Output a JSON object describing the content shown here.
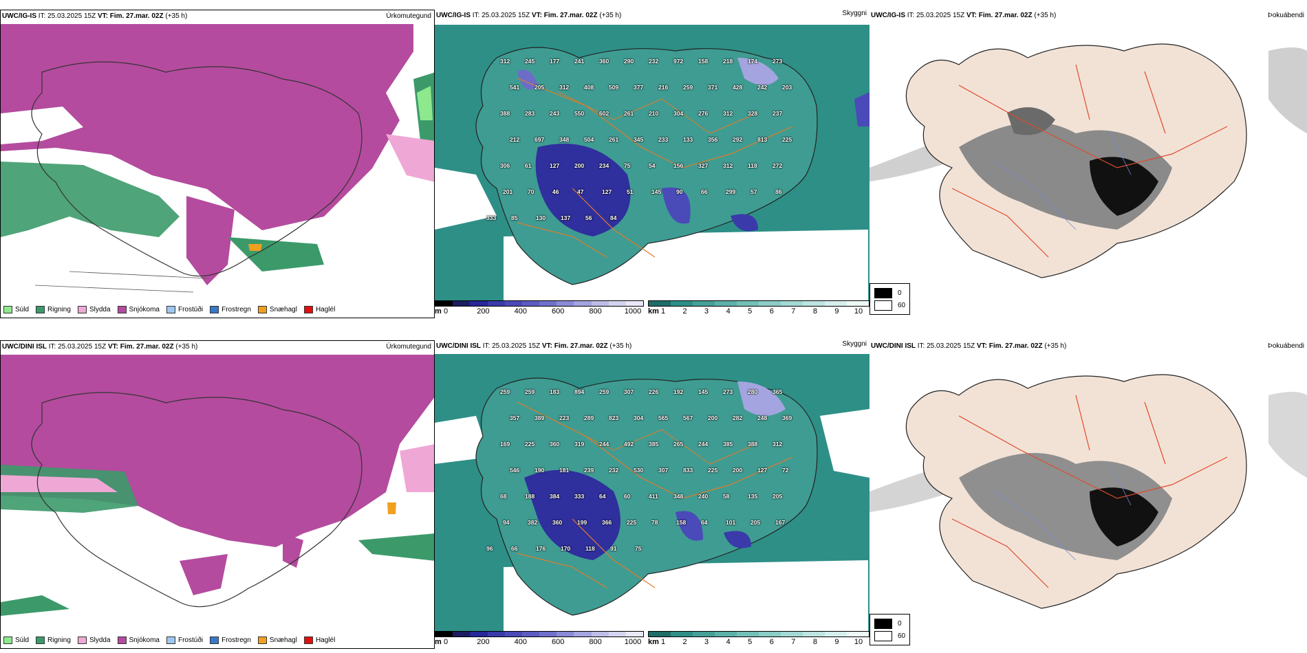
{
  "colors": {
    "snow": "#b44b9e",
    "rain": "#3c9a6a",
    "drizzle": "#8ee88e",
    "sleet": "#efa8d6",
    "sea_teal": "#2e8f87",
    "land_blue": "#2f2f9e",
    "road_orange": "#e07b2a",
    "road_red": "#e04a2a",
    "land_beige": "#f2e2d6"
  },
  "rows": [
    {
      "model": "UWC/IG-IS",
      "it_label": "IT:",
      "it_value": "25.03.2025 15Z",
      "vt_label": "VT:",
      "vt_value": "Fim. 27.mar. 02Z",
      "lead": "(+35 h)",
      "titles": {
        "precip": "Úrkomutegund",
        "visibility": "Skyggni",
        "fog": "Þokuábendi"
      },
      "ceiling_labels": [
        "312",
        "245",
        "177",
        "241",
        "360",
        "290",
        "232",
        "972",
        "158",
        "218",
        "174",
        "273",
        "541",
        "205",
        "312",
        "408",
        "509",
        "377",
        "216",
        "259",
        "371",
        "428",
        "242",
        "203",
        "388",
        "283",
        "243",
        "550",
        "602",
        "261",
        "210",
        "304",
        "276",
        "312",
        "328",
        "237",
        "212",
        "697",
        "348",
        "504",
        "261",
        "345",
        "233",
        "133",
        "356",
        "292",
        "813",
        "225",
        "306",
        "61",
        "127",
        "200",
        "234",
        "75",
        "54",
        "156",
        "327",
        "312",
        "118",
        "272",
        "201",
        "70",
        "46",
        "47",
        "127",
        "51",
        "145",
        "90",
        "66",
        "299",
        "57",
        "86",
        "333",
        "85",
        "130",
        "137",
        "56",
        "84"
      ]
    },
    {
      "model": "UWC/DINI ISL",
      "it_label": "IT:",
      "it_value": "25.03.2025 15Z",
      "vt_label": "VT:",
      "vt_value": "Fim. 27.mar. 02Z",
      "lead": "(+35 h)",
      "titles": {
        "precip": "Úrkomutegund",
        "visibility": "Skyggni",
        "fog": "Þokuábendi"
      },
      "ceiling_labels": [
        "259",
        "259",
        "183",
        "894",
        "259",
        "307",
        "226",
        "192",
        "145",
        "273",
        "280",
        "365",
        "357",
        "389",
        "223",
        "289",
        "823",
        "304",
        "565",
        "567",
        "200",
        "282",
        "248",
        "369",
        "169",
        "225",
        "360",
        "319",
        "244",
        "492",
        "385",
        "265",
        "244",
        "385",
        "388",
        "312",
        "546",
        "190",
        "181",
        "239",
        "232",
        "530",
        "307",
        "833",
        "225",
        "200",
        "127",
        "72",
        "68",
        "188",
        "384",
        "333",
        "64",
        "60",
        "411",
        "348",
        "240",
        "58",
        "135",
        "205",
        "94",
        "382",
        "360",
        "199",
        "366",
        "225",
        "78",
        "158",
        "64",
        "101",
        "205",
        "167",
        "96",
        "66",
        "176",
        "170",
        "118",
        "91",
        "75"
      ]
    }
  ],
  "precip_legend": [
    {
      "label": "Súld",
      "color": "#8ee88e"
    },
    {
      "label": "Rigning",
      "color": "#3c9a6a"
    },
    {
      "label": "Slydda",
      "color": "#efa8d6"
    },
    {
      "label": "Snjókoma",
      "color": "#b44b9e"
    },
    {
      "label": "Frostúði",
      "color": "#9ec8f0"
    },
    {
      "label": "Frostregn",
      "color": "#3a78c8"
    },
    {
      "label": "Snæhagl",
      "color": "#f0a020"
    },
    {
      "label": "Haglél",
      "color": "#e01010"
    }
  ],
  "ceiling_scale": {
    "unit": "m",
    "ticks": [
      "0",
      "200",
      "400",
      "600",
      "800",
      "1000"
    ],
    "colors": [
      "#000000",
      "#1c1c60",
      "#27279a",
      "#3a3aaa",
      "#4a4ab8",
      "#5c5cc2",
      "#7070cc",
      "#8a8ad6",
      "#a4a4e0",
      "#bdbde8",
      "#d4d4f0",
      "#e8e8f8"
    ]
  },
  "visibility_scale": {
    "unit": "km",
    "ticks": [
      "1",
      "2",
      "3",
      "4",
      "5",
      "6",
      "7",
      "8",
      "9",
      "10"
    ],
    "colors": [
      "#1e6d68",
      "#2e8f87",
      "#45a098",
      "#5cb1a9",
      "#74bfb8",
      "#8ccdc7",
      "#a4d9d4",
      "#bde4e0",
      "#d6efec",
      "#eef8f6"
    ]
  },
  "fog_legend": [
    {
      "value": "0",
      "color": "#000000"
    },
    {
      "value": "60",
      "color": "#ffffff"
    }
  ]
}
